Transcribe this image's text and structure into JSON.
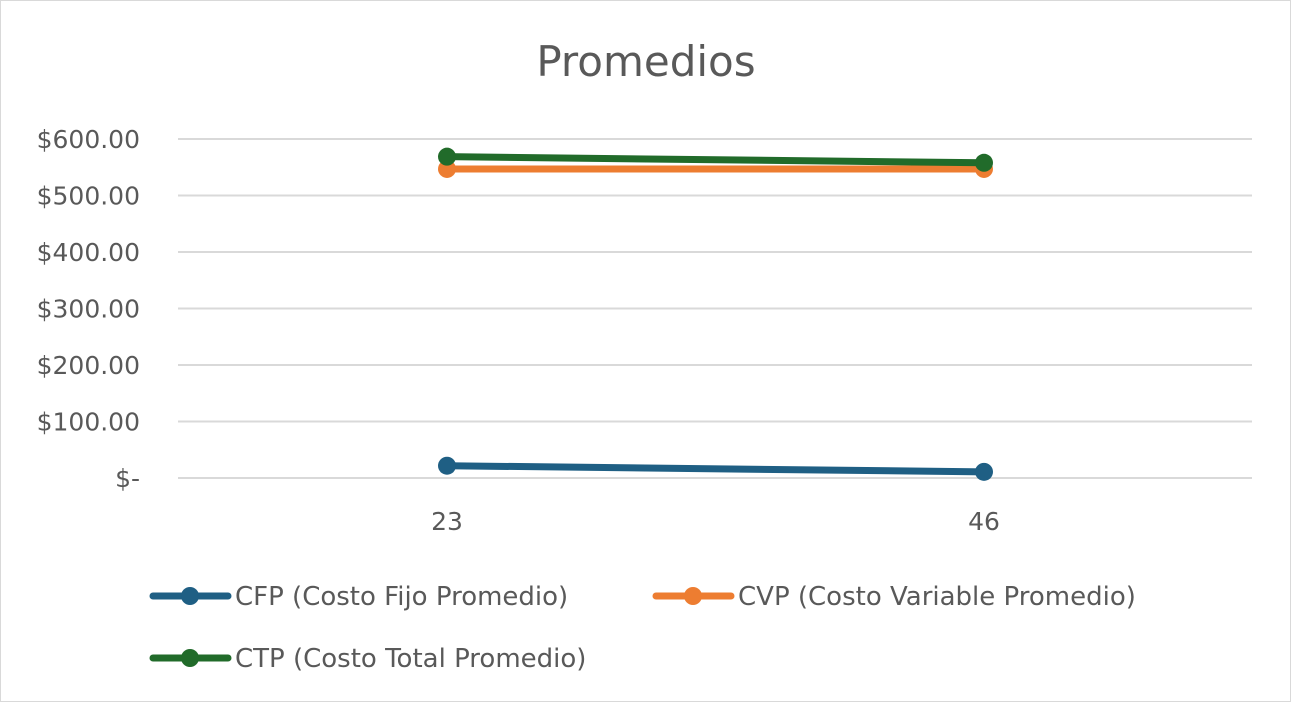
{
  "chart_data": {
    "type": "line",
    "title": "Promedios",
    "xlabel": "",
    "ylabel": "",
    "categories": [
      "23",
      "46"
    ],
    "ylim": [
      0,
      600
    ],
    "y_ticks": [
      {
        "value": 0,
        "label": "$-"
      },
      {
        "value": 100,
        "label": "$100.00"
      },
      {
        "value": 200,
        "label": "$200.00"
      },
      {
        "value": 300,
        "label": "$300.00"
      },
      {
        "value": 400,
        "label": "$400.00"
      },
      {
        "value": 500,
        "label": "$500.00"
      },
      {
        "value": 600,
        "label": "$600.00"
      }
    ],
    "grid": true,
    "legend_position": "bottom",
    "series": [
      {
        "name": "CFP (Costo Fijo Promedio)",
        "color": "#1f5f84",
        "values": [
          21.7,
          10.9
        ]
      },
      {
        "name": "CVP (Costo Variable Promedio)",
        "color": "#ed7d31",
        "values": [
          547,
          547
        ]
      },
      {
        "name": "CTP (Costo Total Promedio)",
        "color": "#216b2a",
        "values": [
          568.7,
          557.9
        ]
      }
    ]
  }
}
